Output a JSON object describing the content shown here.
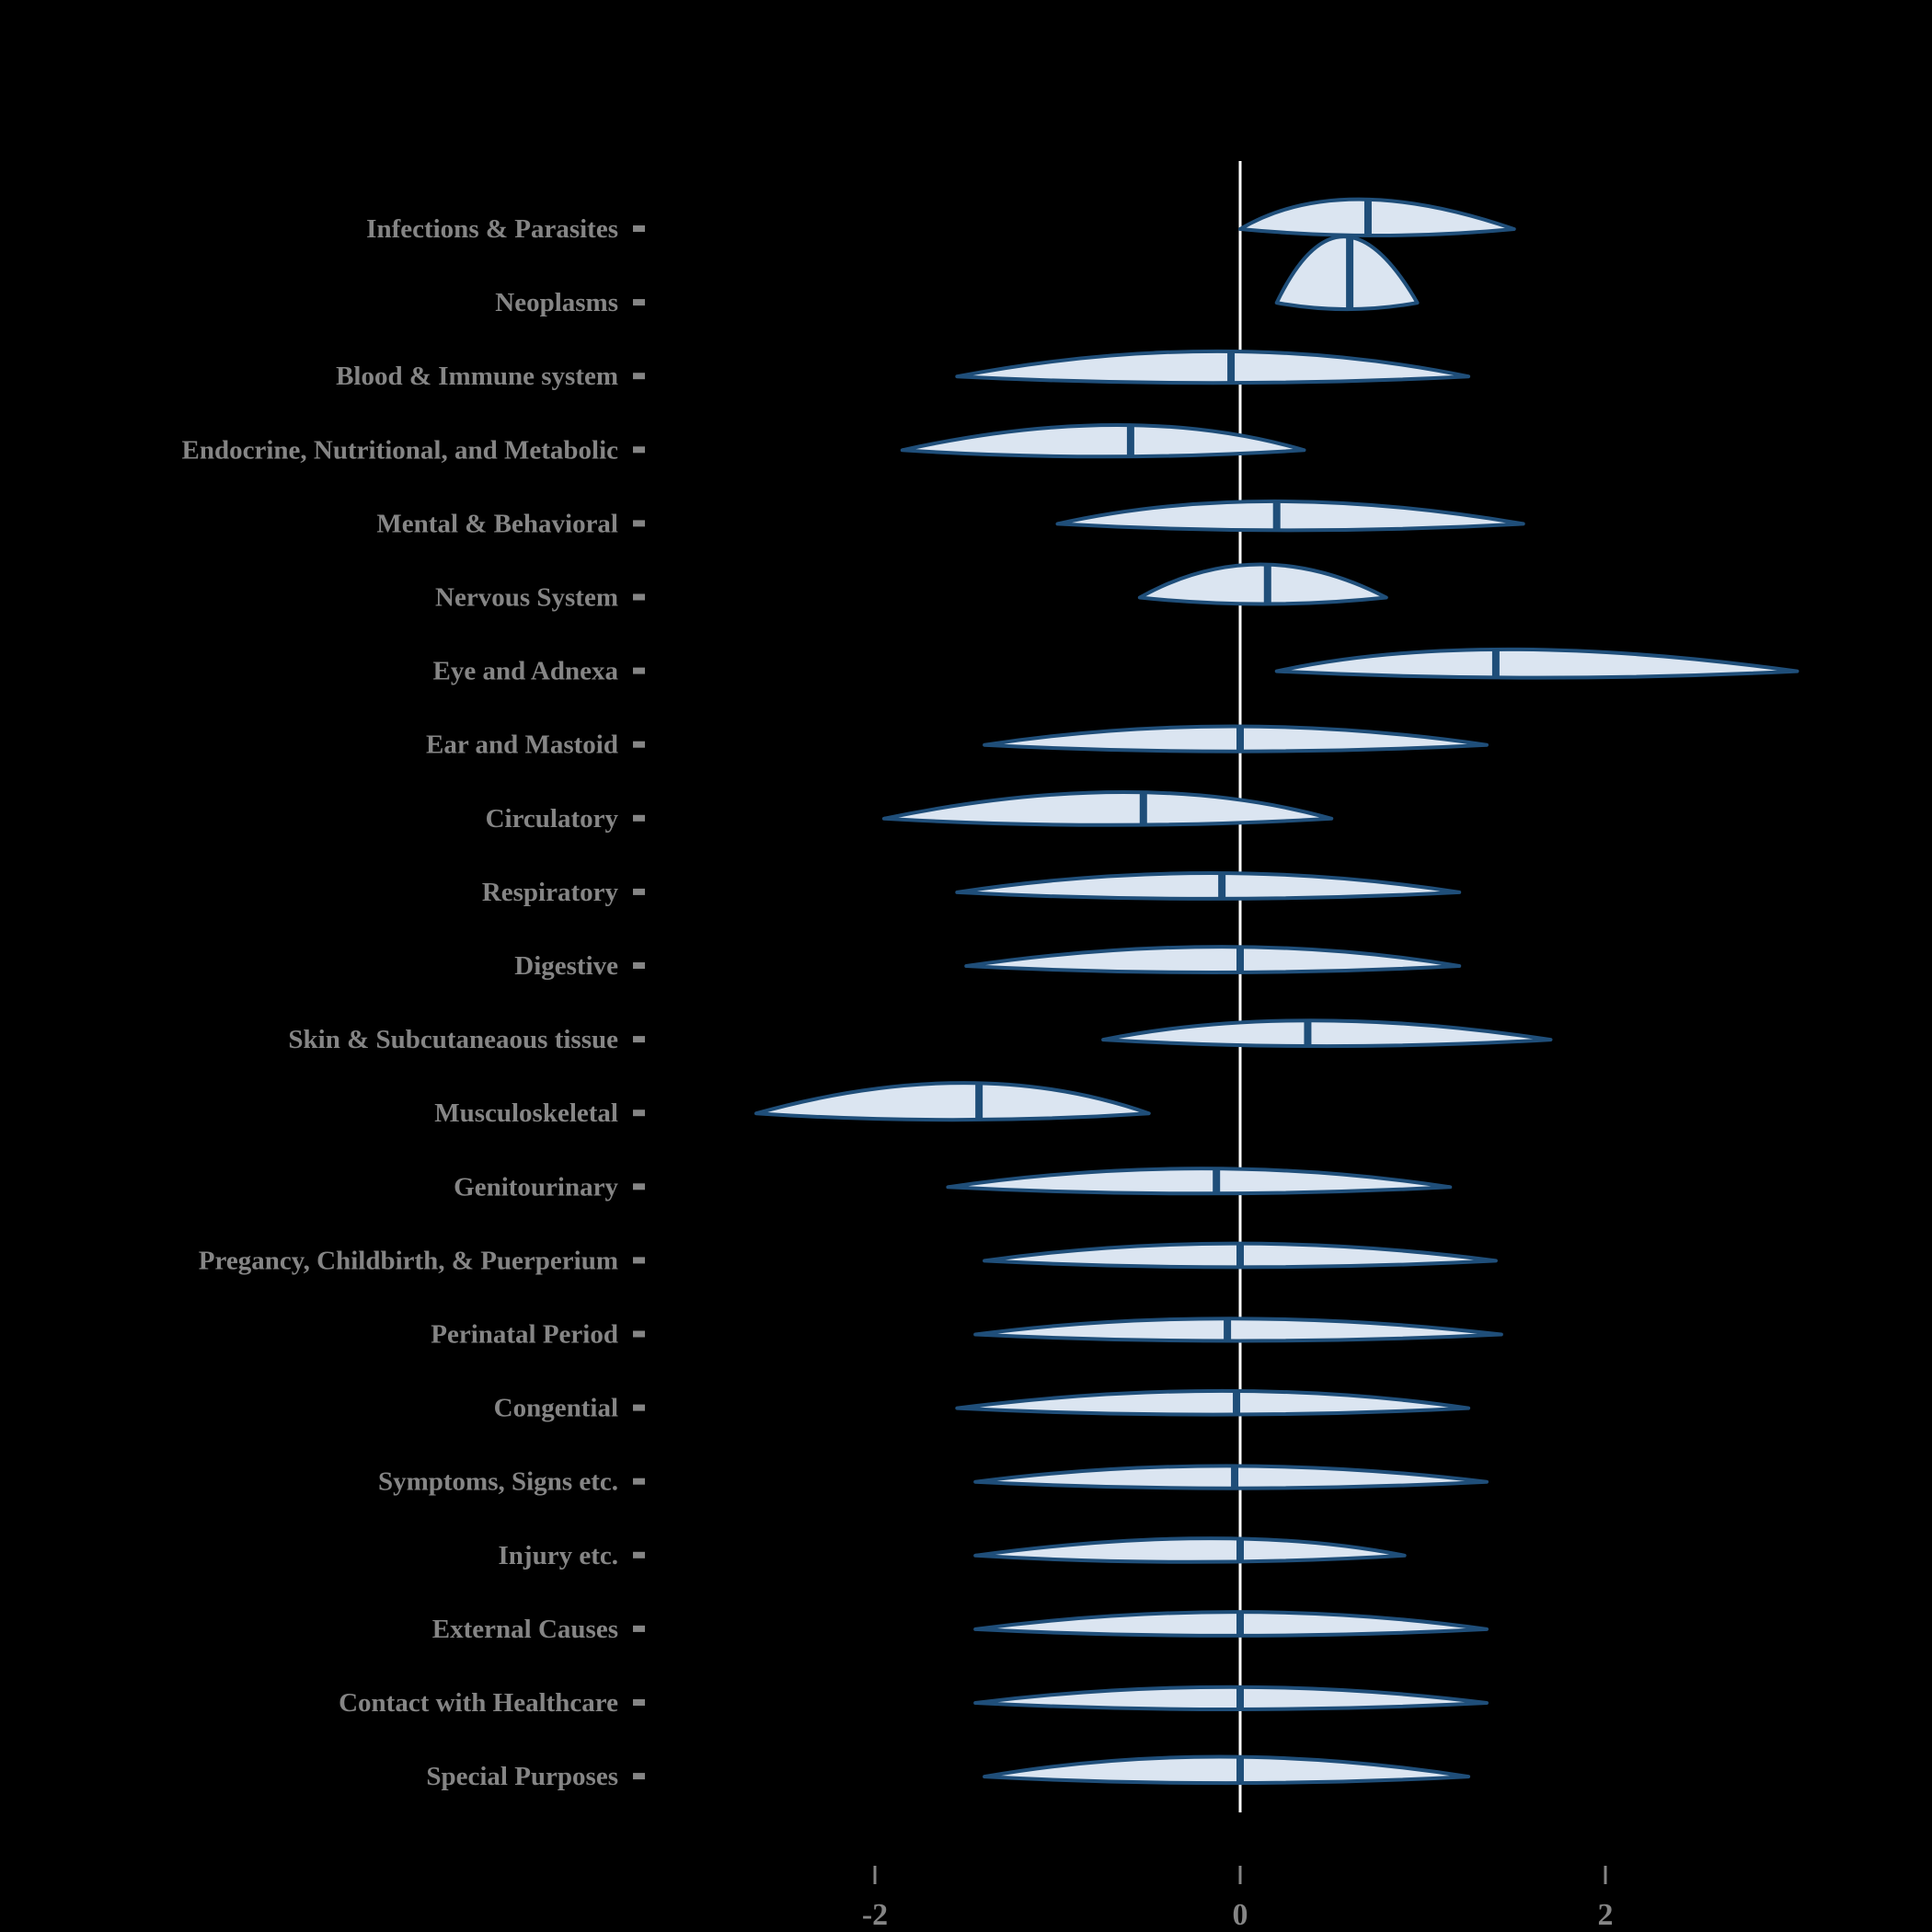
{
  "chart_data": {
    "type": "area",
    "variant": "ridgeline-density-violin",
    "title": "",
    "xlabel": "",
    "ylabel": "",
    "x_ticks": [
      -2,
      0,
      2
    ],
    "x_tick_labels": [
      "-2",
      "0",
      "2"
    ],
    "xlim": [
      -3.2,
      3.4
    ],
    "grid": false,
    "legend": "none",
    "zero_reference_line": true,
    "categories": [
      {
        "label": "Infections & Parasites",
        "min": 0.0,
        "mode": 0.55,
        "median": 0.7,
        "max": 1.5,
        "peak": 0.45
      },
      {
        "label": "Neoplasms",
        "min": 0.2,
        "mode": 0.55,
        "median": 0.6,
        "max": 0.97,
        "peak": 1.0
      },
      {
        "label": "Blood & Immune system",
        "min": -1.55,
        "mode": -0.1,
        "median": -0.05,
        "max": 1.25,
        "peak": 0.38
      },
      {
        "label": "Endocrine, Nutritional, and Metabolic",
        "min": -1.85,
        "mode": -0.6,
        "median": -0.6,
        "max": 0.35,
        "peak": 0.38
      },
      {
        "label": "Mental & Behavioral",
        "min": -1.0,
        "mode": 0.1,
        "median": 0.2,
        "max": 1.55,
        "peak": 0.34
      },
      {
        "label": "Nervous System",
        "min": -0.55,
        "mode": 0.1,
        "median": 0.15,
        "max": 0.8,
        "peak": 0.5
      },
      {
        "label": "Eye and Adnexa",
        "min": 0.2,
        "mode": 1.3,
        "median": 1.4,
        "max": 3.05,
        "peak": 0.33
      },
      {
        "label": "Ear and Mastoid",
        "min": -1.4,
        "mode": -0.05,
        "median": 0.0,
        "max": 1.35,
        "peak": 0.28
      },
      {
        "label": "Circulatory",
        "min": -1.95,
        "mode": -0.55,
        "median": -0.53,
        "max": 0.5,
        "peak": 0.4
      },
      {
        "label": "Respiratory",
        "min": -1.55,
        "mode": -0.15,
        "median": -0.1,
        "max": 1.2,
        "peak": 0.29
      },
      {
        "label": "Digestive",
        "min": -1.5,
        "mode": -0.05,
        "median": 0.0,
        "max": 1.2,
        "peak": 0.29
      },
      {
        "label": "Skin & Subcutaneaous tissue",
        "min": -0.75,
        "mode": 0.3,
        "median": 0.37,
        "max": 1.7,
        "peak": 0.29
      },
      {
        "label": "Musculoskeletal",
        "min": -2.65,
        "mode": -1.45,
        "median": -1.43,
        "max": -0.5,
        "peak": 0.46
      },
      {
        "label": "Genitourinary",
        "min": -1.6,
        "mode": -0.2,
        "median": -0.13,
        "max": 1.15,
        "peak": 0.28
      },
      {
        "label": "Pregancy, Childbirth, & Puerperium",
        "min": -1.4,
        "mode": -0.05,
        "median": 0.0,
        "max": 1.4,
        "peak": 0.26
      },
      {
        "label": "Perinatal Period",
        "min": -1.45,
        "mode": -0.1,
        "median": -0.07,
        "max": 1.43,
        "peak": 0.24
      },
      {
        "label": "Congential",
        "min": -1.55,
        "mode": -0.05,
        "median": -0.02,
        "max": 1.25,
        "peak": 0.26
      },
      {
        "label": "Symptoms, Signs etc.",
        "min": -1.45,
        "mode": -0.1,
        "median": -0.03,
        "max": 1.35,
        "peak": 0.24
      },
      {
        "label": "Injury etc.",
        "min": -1.45,
        "mode": -0.05,
        "median": 0.0,
        "max": 0.9,
        "peak": 0.26
      },
      {
        "label": "External Causes",
        "min": -1.45,
        "mode": 0.0,
        "median": 0.0,
        "max": 1.35,
        "peak": 0.26
      },
      {
        "label": "Contact with Healthcare",
        "min": -1.45,
        "mode": -0.05,
        "median": 0.0,
        "max": 1.35,
        "peak": 0.24
      },
      {
        "label": "Special Purposes",
        "min": -1.4,
        "mode": -0.15,
        "median": 0.0,
        "max": 1.25,
        "peak": 0.3
      }
    ]
  },
  "style": {
    "background": "#000000",
    "density_fill": "#dbe5f1",
    "density_outline": "#1f4e79",
    "median_color": "#1f4e79",
    "label_color": "#858585",
    "axis_color": "#858585",
    "zero_line_color": "#ffffff"
  }
}
